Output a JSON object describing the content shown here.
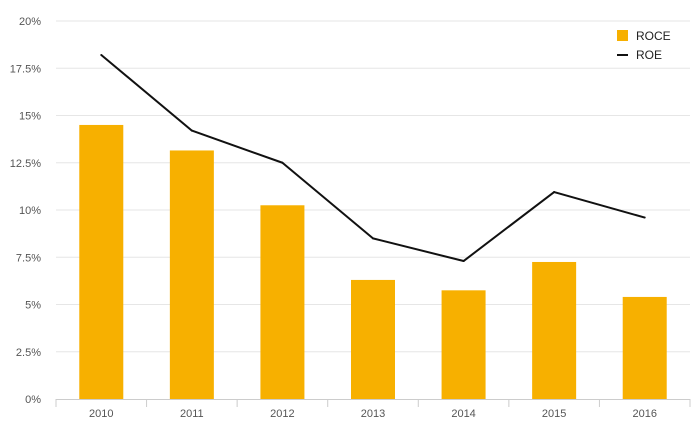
{
  "chart_data": {
    "type": "bar",
    "categories": [
      "2010",
      "2011",
      "2012",
      "2013",
      "2014",
      "2015",
      "2016"
    ],
    "series": [
      {
        "name": "ROCE",
        "type": "bar",
        "color": "#F7B000",
        "values": [
          14.5,
          13.15,
          10.25,
          6.3,
          5.75,
          7.25,
          5.4
        ]
      },
      {
        "name": "ROE",
        "type": "line",
        "color": "#111111",
        "values": [
          18.2,
          14.2,
          12.5,
          8.5,
          7.3,
          10.95,
          9.6
        ]
      }
    ],
    "y_ticks": [
      "0%",
      "2.5%",
      "5%",
      "7.5%",
      "10%",
      "12.5%",
      "15%",
      "17.5%",
      "20%"
    ],
    "ylim": [
      0,
      20
    ],
    "grid": true,
    "legend_position": "top-right"
  }
}
